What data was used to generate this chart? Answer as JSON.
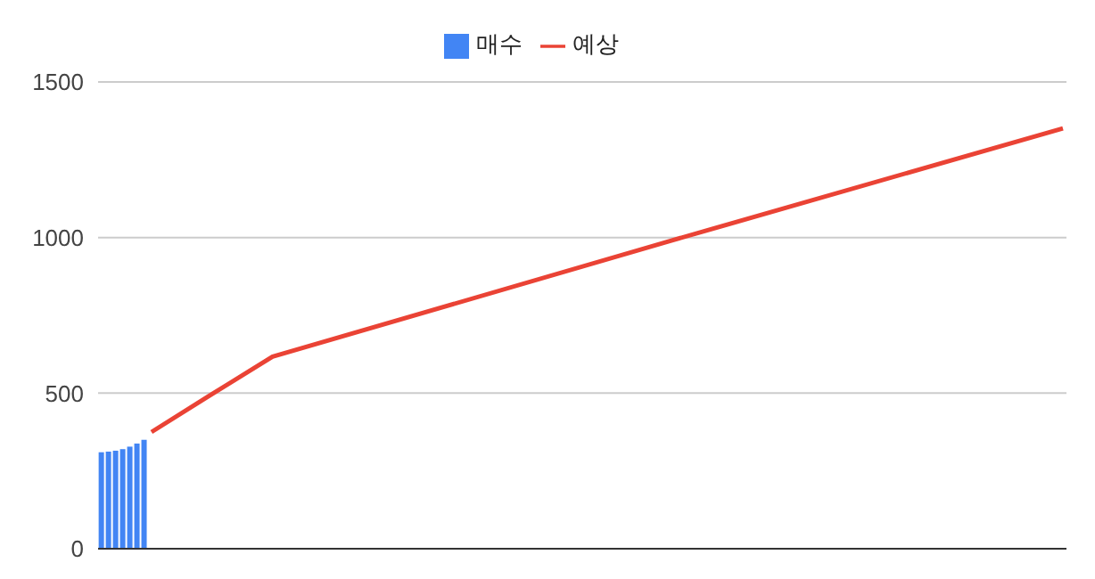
{
  "chart_data": {
    "type": "bar",
    "categories": [
      null,
      null,
      null,
      null,
      null,
      null,
      null,
      null,
      null,
      null,
      null,
      null,
      null,
      null,
      null,
      null,
      null,
      null,
      null,
      null,
      null,
      null,
      null,
      null,
      null,
      null,
      null,
      null,
      null,
      null,
      null,
      null,
      null,
      null,
      null,
      null,
      null,
      null,
      null,
      null,
      null,
      null,
      null,
      null,
      null,
      null,
      null,
      null,
      null,
      null,
      null,
      null,
      null,
      null,
      null,
      null,
      null,
      null,
      null,
      null,
      null,
      null,
      null,
      null,
      null,
      null,
      null,
      null,
      null,
      null,
      null,
      null,
      null,
      null,
      null,
      null,
      null,
      null,
      null,
      null,
      null,
      null,
      null,
      null,
      null,
      null,
      null,
      null,
      null,
      null,
      null,
      null,
      null,
      null,
      null,
      null,
      null,
      null,
      null,
      null,
      null,
      null,
      null,
      null,
      null,
      null,
      null,
      null,
      null,
      null,
      null,
      null,
      null,
      null,
      null,
      null,
      null,
      null,
      null,
      null,
      null,
      null,
      null,
      null,
      null,
      null,
      null,
      null,
      null,
      null,
      null,
      null,
      null,
      null,
      null,
      null
    ],
    "series": [
      {
        "name": "매수",
        "color": "#4285f4",
        "values": [
          310,
          312,
          315,
          320,
          328,
          338,
          350,
          null,
          null,
          null,
          null,
          null,
          null,
          null,
          null,
          null,
          null,
          null,
          null,
          null,
          null,
          null,
          null,
          null,
          null,
          null,
          null,
          null,
          null,
          null,
          null,
          null,
          null,
          null,
          null,
          null,
          null,
          null,
          null,
          null,
          null,
          null,
          null,
          null,
          null,
          null,
          null,
          null,
          null,
          null,
          null,
          null,
          null,
          null,
          null,
          null,
          null,
          null,
          null,
          null,
          null,
          null,
          null,
          null,
          null,
          null,
          null,
          null,
          null,
          null,
          null,
          null,
          null,
          null,
          null,
          null,
          null,
          null,
          null,
          null,
          null,
          null,
          null,
          null,
          null,
          null,
          null,
          null,
          null,
          null,
          null,
          null,
          null,
          null,
          null,
          null,
          null,
          null,
          null,
          null,
          null,
          null,
          null,
          null,
          null,
          null,
          null,
          null,
          null,
          null,
          null,
          null,
          null,
          null,
          null,
          null,
          null,
          null,
          null,
          null,
          null,
          null,
          null,
          null,
          null,
          null,
          null,
          null,
          null,
          null,
          null,
          null,
          null,
          null,
          null,
          null
        ]
      },
      {
        "name": "예상",
        "type": "line",
        "color": "#ea4335",
        "values": [
          null,
          null,
          null,
          null,
          null,
          null,
          null,
          375,
          null,
          null,
          null,
          null,
          null,
          null,
          null,
          490,
          null,
          null,
          null,
          null,
          null,
          null,
          null,
          null,
          617,
          null,
          null,
          null,
          null,
          null,
          null,
          null,
          null,
          null,
          null,
          null,
          null,
          null,
          null,
          null,
          null,
          null,
          null,
          null,
          null,
          null,
          null,
          null,
          null,
          null,
          null,
          null,
          null,
          null,
          null,
          null,
          null,
          null,
          null,
          null,
          null,
          null,
          null,
          null,
          null,
          null,
          null,
          null,
          null,
          null,
          null,
          null,
          null,
          null,
          null,
          null,
          null,
          null,
          null,
          null,
          990,
          null,
          null,
          null,
          null,
          null,
          null,
          null,
          null,
          null,
          null,
          null,
          null,
          null,
          null,
          null,
          null,
          null,
          null,
          null,
          null,
          null,
          null,
          null,
          null,
          null,
          null,
          null,
          null,
          null,
          null,
          null,
          null,
          null,
          null,
          null,
          null,
          null,
          null,
          null,
          null,
          null,
          null,
          null,
          null,
          null,
          null,
          null,
          null,
          null,
          null,
          null,
          null,
          null,
          null,
          1351
        ]
      }
    ],
    "ylim": [
      0,
      1500
    ],
    "yticks": [
      0,
      500,
      1000,
      1500
    ],
    "grid": "y",
    "legend": "top",
    "tick_labels": "y",
    "marker": "none"
  }
}
